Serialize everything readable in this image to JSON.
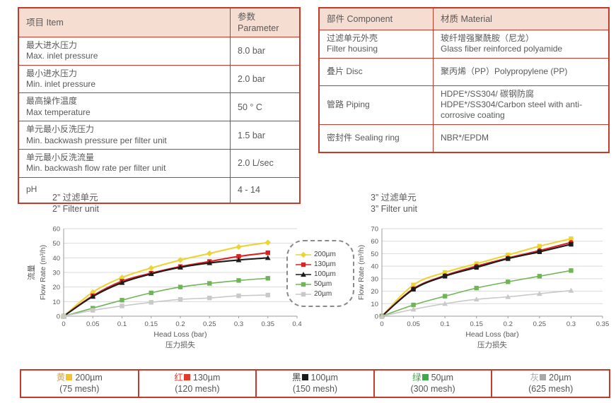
{
  "spec_table": {
    "headers": [
      "项目 Item",
      "参数 Parameter"
    ],
    "rows": [
      {
        "item": [
          "最大进水压力",
          "Max. inlet pressure"
        ],
        "value": "8.0 bar"
      },
      {
        "item": [
          "最小进水压力",
          "Min. inlet pressure"
        ],
        "value": "2.0 bar"
      },
      {
        "item": [
          "最高操作温度",
          "Max temperature"
        ],
        "value": "50 ° C"
      },
      {
        "item": [
          "单元最小反洗压力",
          "Min. backwash pressure per filter unit"
        ],
        "value": "1.5 bar"
      },
      {
        "item": [
          "单元最小反洗流量",
          "Min. backwash flow rate per filter unit"
        ],
        "value": "2.0 L/sec"
      },
      {
        "item": [
          "pH"
        ],
        "value": "4 - 14"
      }
    ]
  },
  "material_table": {
    "headers": [
      "部件 Component",
      "材质 Material"
    ],
    "rows": [
      {
        "component": [
          "过滤单元外壳",
          "Filter housing"
        ],
        "material": [
          "玻纤增强聚酰胺（尼龙）",
          "Glass fiber reinforced polyamide"
        ]
      },
      {
        "component": [
          "叠片 Disc"
        ],
        "material": [
          "聚丙烯（PP）Polypropylene (PP)"
        ]
      },
      {
        "component": [
          "管路 Piping"
        ],
        "material": [
          "HDPE*/SS304/ 碳钢防腐",
          "HDPE*/SS304/Carbon steel with anti-corrosive coating"
        ]
      },
      {
        "component": [
          "密封件 Sealing ring"
        ],
        "material": [
          "NBR*/EPDM"
        ]
      }
    ]
  },
  "chart_data": [
    {
      "type": "line",
      "title": [
        "2” 过滤单元",
        "2” Filter unit"
      ],
      "xlabel": "Head Loss (bar)",
      "xlabel_cn": "压力损失",
      "ylabel": [
        "流量",
        "Flow Rate (m³/h)"
      ],
      "ylim": [
        0,
        60
      ],
      "ystep": 10,
      "xlim": [
        0,
        0.4
      ],
      "xticks": [
        "0",
        "0.05",
        "0.1",
        "0.15",
        "0.2",
        "0.25",
        "0.3",
        "0.35",
        "0.4"
      ],
      "x": [
        0,
        0.05,
        0.1,
        0.15,
        0.2,
        0.25,
        0.3,
        0.35
      ],
      "grid": "horizontal",
      "series": [
        {
          "name": "200µm",
          "color": "#ecd435",
          "marker": "diamond",
          "values": [
            0,
            16.5,
            26.5,
            33,
            38.5,
            43,
            47.5,
            50.5
          ]
        },
        {
          "name": "130µm",
          "color": "#d62422",
          "marker": "square",
          "values": [
            0,
            14,
            24,
            29.5,
            34,
            37.5,
            41,
            43.5
          ]
        },
        {
          "name": "100µm",
          "color": "#1c1c1c",
          "marker": "triangle",
          "values": [
            0,
            13.5,
            23,
            29,
            33.5,
            36.5,
            38.5,
            40
          ]
        },
        {
          "name": "50µm",
          "color": "#6fb556",
          "marker": "square",
          "values": [
            0,
            5.5,
            11,
            16,
            20,
            22.5,
            24.5,
            26
          ]
        },
        {
          "name": "20µm",
          "color": "#c9c9c9",
          "marker": "square",
          "values": [
            0,
            4,
            7,
            9.5,
            11.5,
            12.5,
            14,
            14.5
          ]
        }
      ]
    },
    {
      "type": "line",
      "title": [
        "3” 过滤单元",
        "3” Filter unit"
      ],
      "xlabel": "Head Loss (bar)",
      "xlabel_cn": "压力损失",
      "ylabel": [
        "流量",
        "Flow Rate (m³/h)"
      ],
      "ylim": [
        0,
        70
      ],
      "ystep": 10,
      "xlim": [
        0,
        0.35
      ],
      "xticks": [
        "0",
        "0.05",
        "0.1",
        "0.15",
        "0.2",
        "0.25",
        "0.3",
        "0.35"
      ],
      "x": [
        0,
        0.05,
        0.1,
        0.15,
        0.2,
        0.25,
        0.3
      ],
      "grid": "horizontal",
      "series": [
        {
          "name": "200µm",
          "color": "#ecd435",
          "marker": "square",
          "values": [
            0,
            25,
            35,
            42,
            49,
            56,
            62
          ]
        },
        {
          "name": "130µm",
          "color": "#d62422",
          "marker": "circle",
          "values": [
            0,
            22,
            32.5,
            40,
            46.5,
            52.5,
            59
          ]
        },
        {
          "name": "100µm",
          "color": "#1c1c1c",
          "marker": "square",
          "values": [
            0,
            21.5,
            32,
            39,
            46,
            51.5,
            57.5
          ]
        },
        {
          "name": "50µm",
          "color": "#6fb556",
          "marker": "square",
          "values": [
            0,
            9,
            16,
            22.5,
            27.5,
            32,
            36.5
          ]
        },
        {
          "name": "20µm",
          "color": "#c9c9c9",
          "marker": "triangle",
          "values": [
            0,
            5.5,
            10,
            13.5,
            15.5,
            18,
            20.5
          ]
        }
      ]
    }
  ],
  "legend_box": {
    "entries": [
      {
        "label": "200µm",
        "color": "#ecd435",
        "marker": "diamond"
      },
      {
        "label": "130µm",
        "color": "#d62422",
        "marker": "square"
      },
      {
        "label": "100µm",
        "color": "#1c1c1c",
        "marker": "triangle"
      },
      {
        "label": "50µm",
        "color": "#6fb556",
        "marker": "square"
      },
      {
        "label": "20µm",
        "color": "#c9c9c9",
        "marker": "square"
      }
    ]
  },
  "mesh_table": {
    "cells": [
      {
        "cn": "黄",
        "cn_color": "#dfa52f",
        "swatch": "#f2c230",
        "size": "200µm",
        "mesh": "(75 mesh)"
      },
      {
        "cn": "红",
        "cn_color": "#e23b2e",
        "swatch": "#e23b2e",
        "size": "130µm",
        "mesh": "(120 mesh)"
      },
      {
        "cn": "黑",
        "cn_color": "#3d3d3d",
        "swatch": "#1c1c1c",
        "size": "100µm",
        "mesh": "(150 mesh)"
      },
      {
        "cn": "绿",
        "cn_color": "#43a847",
        "swatch": "#43a847",
        "size": "50µm",
        "mesh": "(300 mesh)"
      },
      {
        "cn": "灰",
        "cn_color": "#a8a8a8",
        "swatch": "#a8a8a8",
        "size": "20µm",
        "mesh": "(625 mesh)"
      }
    ]
  }
}
